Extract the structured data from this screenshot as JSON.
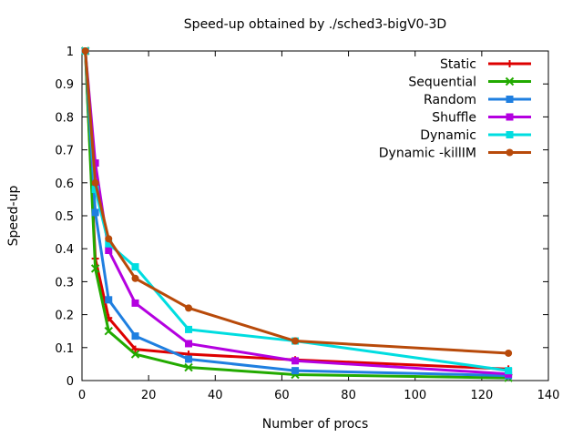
{
  "chart_data": {
    "type": "line",
    "title": "Speed-up obtained by ./sched3-bigV0-3D",
    "xlabel": "Number of procs",
    "ylabel": "Speed-up",
    "xlim": [
      0,
      140
    ],
    "ylim": [
      0,
      1
    ],
    "xticks": [
      0,
      20,
      40,
      60,
      80,
      100,
      120,
      140
    ],
    "yticks": [
      0,
      0.1,
      0.2,
      0.3,
      0.4,
      0.5,
      0.6,
      0.7,
      0.8,
      0.9,
      1
    ],
    "grid": false,
    "legend_position": "top-right",
    "series": [
      {
        "name": "Static",
        "color": "#dd0000",
        "marker": "plus",
        "x": [
          1,
          4,
          8,
          16,
          32,
          64,
          128
        ],
        "y": [
          1,
          0.37,
          0.19,
          0.095,
          0.08,
          0.063,
          0.035
        ]
      },
      {
        "name": "Sequential",
        "color": "#22aa00",
        "marker": "cross",
        "x": [
          1,
          4,
          8,
          16,
          32,
          64,
          128
        ],
        "y": [
          1,
          0.34,
          0.15,
          0.08,
          0.04,
          0.018,
          0.008
        ]
      },
      {
        "name": "Random",
        "color": "#1f7fe0",
        "marker": "square",
        "x": [
          1,
          4,
          8,
          16,
          32,
          64,
          128
        ],
        "y": [
          1,
          0.51,
          0.245,
          0.135,
          0.065,
          0.03,
          0.015
        ]
      },
      {
        "name": "Shuffle",
        "color": "#b400e0",
        "marker": "square",
        "x": [
          1,
          4,
          8,
          16,
          32,
          64,
          128
        ],
        "y": [
          1,
          0.66,
          0.395,
          0.235,
          0.112,
          0.06,
          0.02
        ]
      },
      {
        "name": "Dynamic",
        "color": "#00dde0",
        "marker": "square",
        "x": [
          1,
          4,
          8,
          16,
          32,
          64,
          128
        ],
        "y": [
          1,
          0.58,
          0.415,
          0.345,
          0.155,
          0.12,
          0.03
        ]
      },
      {
        "name": "Dynamic -killIM",
        "color": "#b84a0a",
        "marker": "circle",
        "x": [
          1,
          4,
          8,
          16,
          32,
          64,
          128
        ],
        "y": [
          1,
          0.6,
          0.43,
          0.31,
          0.22,
          0.12,
          0.083
        ]
      }
    ]
  }
}
